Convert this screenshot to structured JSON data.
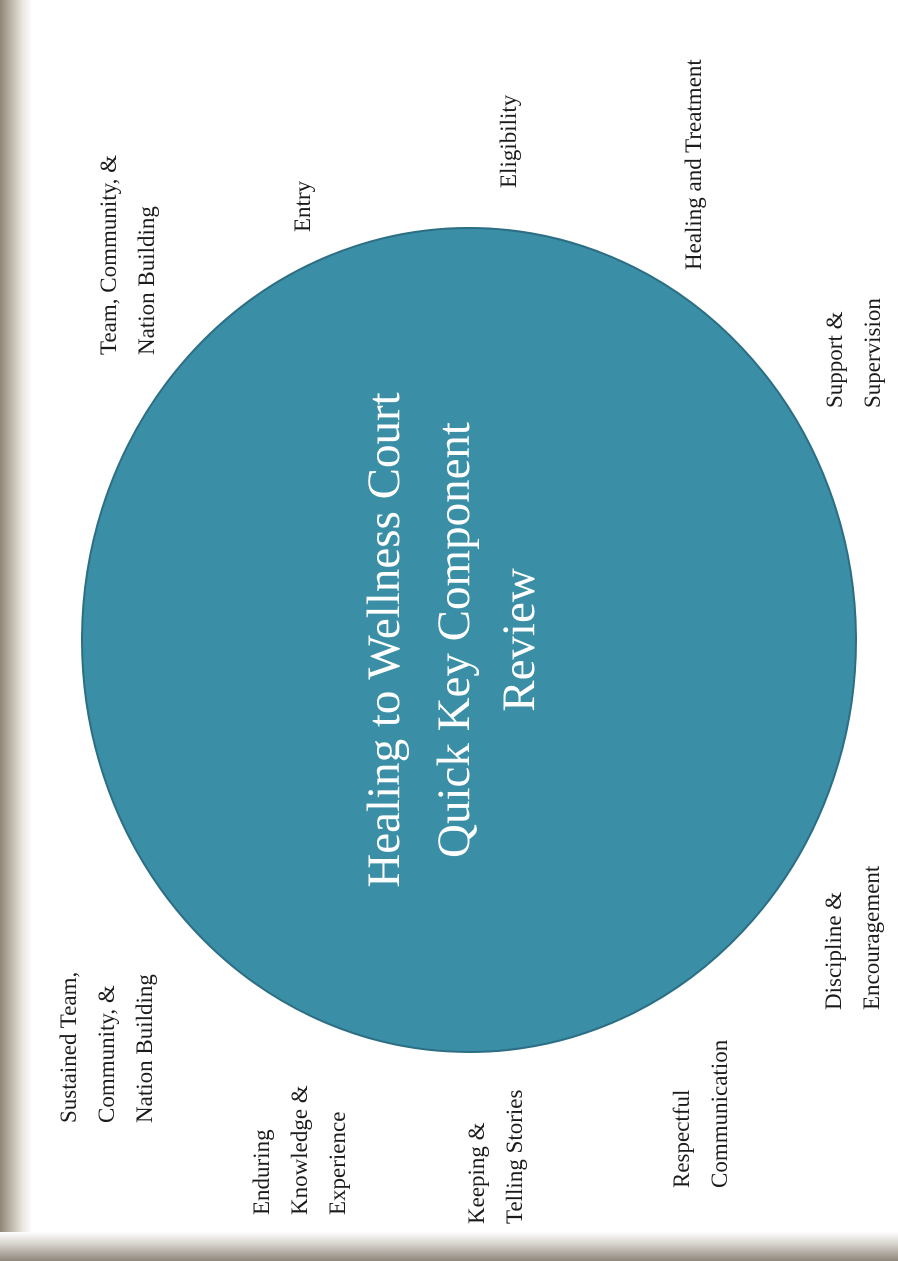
{
  "diagram": {
    "center_title_lines": [
      "Healing to Wellness Court",
      "Quick Key Component",
      "Review"
    ],
    "circle_color": "#3a8ea6",
    "components": [
      {
        "id": "team-community-nation-building",
        "lines": [
          "Team,  Community, &",
          "Nation Building"
        ]
      },
      {
        "id": "entry",
        "lines": [
          "Entry"
        ]
      },
      {
        "id": "eligibility",
        "lines": [
          "Eligibility"
        ]
      },
      {
        "id": "healing-and-treatment",
        "lines": [
          "Healing and Treatment"
        ]
      },
      {
        "id": "support-supervision",
        "lines": [
          "Support  &",
          "Supervision"
        ]
      },
      {
        "id": "discipline-encouragement",
        "lines": [
          "Discipline  &",
          "Encouragement"
        ]
      },
      {
        "id": "respectful-communication",
        "lines": [
          "Respectful",
          "Communication"
        ]
      },
      {
        "id": "keeping-telling-stories",
        "lines": [
          "Keeping &",
          "Telling Stories"
        ]
      },
      {
        "id": "enduring-knowledge-experience",
        "lines": [
          "Enduring",
          "Knowledge &",
          "Experience"
        ]
      },
      {
        "id": "sustained-team-community-nation-building",
        "lines": [
          "Sustained Team,",
          "Community,  &",
          "Nation Building"
        ]
      }
    ]
  }
}
